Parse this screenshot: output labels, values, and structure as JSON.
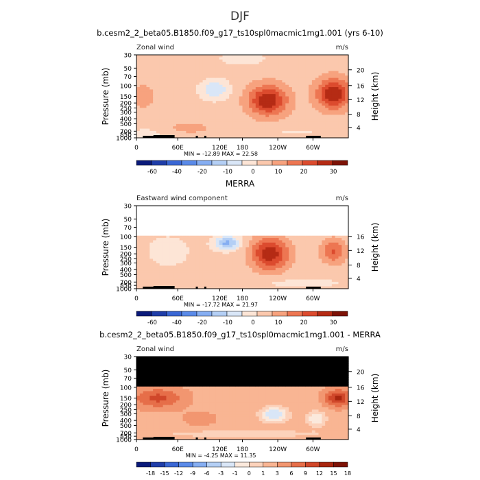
{
  "page_title": "DJF",
  "unit_label": "m/s",
  "colors": {
    "cb_standard": [
      "#0a1a7a",
      "#1f3da8",
      "#3a67d4",
      "#5a8ae8",
      "#86aef2",
      "#b4cff5",
      "#d9e6f7",
      "#fde5d6",
      "#fbc8ad",
      "#f7a27e",
      "#ed7652",
      "#dc4b2e",
      "#b52b14",
      "#7d1206"
    ],
    "cb_diff": [
      "#0a1a7a",
      "#1f3da8",
      "#3a67d4",
      "#5a8ae8",
      "#86aef2",
      "#b4cff5",
      "#d9e6f7",
      "#fbe9dc",
      "#fcd2bb",
      "#f9b593",
      "#f29670",
      "#e66e49",
      "#d0472a",
      "#a8260f",
      "#7d1206"
    ]
  },
  "chart_data": [
    {
      "type": "heatmap",
      "title": "b.cesm2_2_beta05.B1850.f09_g17_ts10spl0macmic1mg1.001 (yrs 6-10)",
      "left_label": "Zonal wind",
      "units": "m/s",
      "xlabel": "",
      "ylabel": "Pressure (mb)",
      "y2label": "Height (km)",
      "x_ticks": [
        "0",
        "60E",
        "120E",
        "180",
        "120W",
        "60W"
      ],
      "p_ticks": [
        "30",
        "50",
        "70",
        "100",
        "150",
        "200",
        "250",
        "300",
        "400",
        "500",
        "700",
        "850",
        "1000"
      ],
      "z_ticks": [
        "4",
        "8",
        "12",
        "16",
        "20"
      ],
      "stats": "MIN = -12.89   MAX =  22.58",
      "colorbar_labels": [
        "-60",
        "-40",
        "-20",
        "-10",
        "0",
        "10",
        "20",
        "30"
      ],
      "min": -12.89,
      "max": 22.58
    },
    {
      "type": "heatmap",
      "title": "MERRA",
      "left_label": "Eastward wind component",
      "units": "m/s",
      "xlabel": "",
      "ylabel": "Pressure (mb)",
      "y2label": "Height (km)",
      "x_ticks": [
        "0",
        "60E",
        "120E",
        "180",
        "120W",
        "60W"
      ],
      "p_ticks": [
        "30",
        "50",
        "70",
        "100",
        "150",
        "200",
        "250",
        "300",
        "400",
        "500",
        "700",
        "850",
        "1000"
      ],
      "z_ticks": [
        "4",
        "8",
        "12",
        "16"
      ],
      "stats": "MIN = -17.72   MAX =  21.97",
      "colorbar_labels": [
        "-60",
        "-40",
        "-20",
        "-10",
        "0",
        "10",
        "20",
        "30"
      ],
      "min": -17.72,
      "max": 21.97
    },
    {
      "type": "heatmap",
      "title": "b.cesm2_2_beta05.B1850.f09_g17_ts10spl0macmic1mg1.001 - MERRA",
      "left_label": "Zonal wind",
      "units": "m/s",
      "xlabel": "",
      "ylabel": "Pressure (mb)",
      "y2label": "Height (km)",
      "x_ticks": [
        "0",
        "60E",
        "120E",
        "180",
        "120W",
        "60W"
      ],
      "p_ticks": [
        "30",
        "50",
        "70",
        "100",
        "150",
        "200",
        "250",
        "300",
        "400",
        "500",
        "700",
        "850",
        "1000"
      ],
      "z_ticks": [
        "4",
        "8",
        "12",
        "16",
        "20"
      ],
      "stats": "MIN = -4.25   MAX =  11.35",
      "colorbar_labels": [
        "-18",
        "-15",
        "-12",
        "-9",
        "-6",
        "-3",
        "-1",
        "0",
        "1",
        "3",
        "6",
        "9",
        "12",
        "15",
        "18"
      ],
      "min": -4.25,
      "max": 11.35
    }
  ]
}
